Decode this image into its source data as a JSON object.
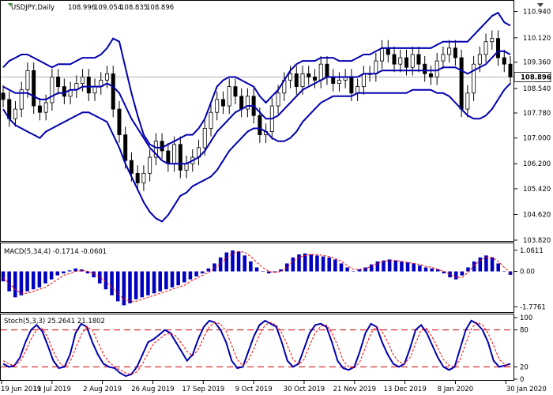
{
  "chart_data": [
    {
      "type": "candlestick",
      "title": "USDJPY,Daily",
      "ohlc": [
        "108.996",
        "109.054",
        "108.835",
        "108.896"
      ],
      "ylim": [
        103.82,
        111.1
      ],
      "y_ticks": [
        "110.940",
        "110.120",
        "109.360",
        "108.540",
        "107.780",
        "107.000",
        "106.200",
        "105.420",
        "104.620",
        "103.820"
      ],
      "last_price": "108.896",
      "series": [
        {
          "name": "Close",
          "values": [
            108.2,
            107.6,
            107.9,
            108.5,
            109.1,
            108.0,
            107.8,
            108.1,
            108.9,
            108.6,
            108.3,
            108.5,
            108.7,
            108.9,
            108.4,
            108.6,
            108.8,
            109.0,
            107.9,
            107.1,
            106.3,
            105.9,
            105.6,
            105.9,
            106.4,
            106.9,
            106.6,
            106.2,
            106.8,
            106.0,
            106.2,
            106.4,
            106.7,
            107.3,
            107.8,
            108.2,
            108.0,
            108.6,
            108.3,
            107.9,
            108.3,
            107.7,
            107.1,
            107.2,
            108.0,
            108.4,
            108.8,
            109.0,
            108.6,
            109.0,
            108.9,
            108.8,
            109.3,
            108.9,
            108.7,
            108.8,
            108.9,
            108.4,
            108.6,
            109.0,
            109.0,
            109.4,
            109.8,
            109.6,
            109.3,
            109.5,
            109.2,
            109.6,
            109.3,
            109.0,
            108.9,
            109.4,
            109.6,
            109.8,
            109.5,
            107.9,
            108.4,
            109.3,
            109.6,
            110.0,
            110.1,
            109.5,
            109.3,
            108.9
          ]
        },
        {
          "name": "BB upper",
          "values": [
            109.2,
            109.4,
            109.5,
            109.6,
            109.6,
            109.5,
            109.4,
            109.3,
            109.2,
            109.3,
            109.3,
            109.3,
            109.4,
            109.5,
            109.5,
            109.5,
            109.6,
            109.8,
            110.1,
            110.0,
            109.2,
            108.4,
            107.7,
            107.1,
            106.8,
            106.7,
            106.7,
            106.8,
            106.9,
            107.0,
            107.1,
            107.1,
            107.3,
            107.6,
            108.1,
            108.6,
            108.8,
            108.9,
            108.9,
            108.8,
            108.7,
            108.6,
            108.3,
            108.1,
            108.3,
            108.5,
            108.8,
            109.1,
            109.3,
            109.4,
            109.4,
            109.4,
            109.5,
            109.5,
            109.5,
            109.4,
            109.4,
            109.4,
            109.5,
            109.6,
            109.6,
            109.7,
            109.8,
            109.8,
            109.8,
            109.8,
            109.8,
            109.8,
            109.8,
            109.8,
            109.8,
            109.9,
            110.0,
            110.0,
            110.0,
            110.0,
            110.0,
            110.2,
            110.4,
            110.6,
            110.8,
            110.9,
            110.6,
            110.5
          ]
        },
        {
          "name": "BB middle",
          "values": [
            108.6,
            108.5,
            108.4,
            108.4,
            108.4,
            108.3,
            108.2,
            108.2,
            108.3,
            108.4,
            108.4,
            108.5,
            108.5,
            108.6,
            108.6,
            108.6,
            108.6,
            108.7,
            108.6,
            108.4,
            108.0,
            107.6,
            107.3,
            107.0,
            106.7,
            106.5,
            106.3,
            106.2,
            106.2,
            106.2,
            106.2,
            106.3,
            106.4,
            106.6,
            106.9,
            107.2,
            107.4,
            107.6,
            107.8,
            107.9,
            108.0,
            108.0,
            107.8,
            107.6,
            107.6,
            107.7,
            107.9,
            108.1,
            108.3,
            108.5,
            108.6,
            108.7,
            108.8,
            108.9,
            108.9,
            108.9,
            108.9,
            108.9,
            108.9,
            109.0,
            109.0,
            109.0,
            109.1,
            109.1,
            109.1,
            109.1,
            109.1,
            109.1,
            109.1,
            109.1,
            109.1,
            109.1,
            109.2,
            109.2,
            109.2,
            109.1,
            109.0,
            109.1,
            109.2,
            109.3,
            109.5,
            109.7,
            109.7,
            109.6
          ]
        },
        {
          "name": "BB lower",
          "values": [
            107.9,
            107.6,
            107.4,
            107.3,
            107.2,
            107.1,
            107.0,
            107.2,
            107.3,
            107.4,
            107.5,
            107.6,
            107.7,
            107.8,
            107.8,
            107.7,
            107.6,
            107.5,
            107.1,
            106.7,
            106.2,
            105.8,
            105.4,
            105.0,
            104.7,
            104.5,
            104.4,
            104.6,
            104.9,
            105.2,
            105.3,
            105.5,
            105.6,
            105.7,
            105.8,
            106.0,
            106.3,
            106.6,
            106.8,
            107.0,
            107.2,
            107.3,
            107.3,
            107.2,
            107.0,
            106.9,
            106.9,
            107.0,
            107.2,
            107.5,
            107.7,
            107.9,
            108.1,
            108.2,
            108.3,
            108.3,
            108.3,
            108.3,
            108.4,
            108.4,
            108.4,
            108.4,
            108.4,
            108.4,
            108.4,
            108.4,
            108.4,
            108.5,
            108.5,
            108.5,
            108.5,
            108.4,
            108.4,
            108.3,
            108.1,
            107.9,
            107.7,
            107.6,
            107.6,
            107.7,
            107.9,
            108.2,
            108.5,
            108.7
          ]
        }
      ]
    },
    {
      "type": "bar",
      "title": "MACD(5,34,4) -0.1714 -0.0601",
      "ylim": [
        -2.0,
        1.25
      ],
      "y_ticks": [
        "1.0611",
        "0.00",
        "-1.7761"
      ],
      "series": [
        {
          "name": "MACD",
          "values": [
            -0.5,
            -1.0,
            -1.3,
            -1.2,
            -1.0,
            -0.9,
            -0.8,
            -0.6,
            -0.4,
            -0.2,
            -0.1,
            0.05,
            0.15,
            0.1,
            -0.1,
            -0.3,
            -0.6,
            -0.9,
            -1.2,
            -1.5,
            -1.7,
            -1.6,
            -1.4,
            -1.3,
            -1.2,
            -1.1,
            -1.0,
            -0.9,
            -0.8,
            -0.7,
            -0.55,
            -0.4,
            -0.25,
            -0.1,
            0.15,
            0.4,
            0.7,
            0.95,
            1.05,
            1.0,
            0.8,
            0.5,
            0.2,
            0.0,
            -0.1,
            -0.05,
            0.1,
            0.4,
            0.7,
            0.85,
            0.9,
            0.85,
            0.8,
            0.75,
            0.7,
            0.6,
            0.4,
            0.2,
            0.0,
            0.1,
            0.2,
            0.35,
            0.5,
            0.55,
            0.6,
            0.55,
            0.5,
            0.45,
            0.4,
            0.3,
            0.2,
            0.15,
            0.1,
            -0.1,
            -0.3,
            -0.4,
            -0.2,
            0.2,
            0.5,
            0.7,
            0.8,
            0.7,
            0.4,
            0.0,
            -0.17
          ]
        },
        {
          "name": "Signal",
          "values": [
            -0.3,
            -0.6,
            -0.9,
            -1.1,
            -1.1,
            -1.0,
            -0.9,
            -0.8,
            -0.6,
            -0.4,
            -0.2,
            -0.1,
            0.0,
            0.05,
            0.0,
            -0.1,
            -0.3,
            -0.5,
            -0.8,
            -1.1,
            -1.4,
            -1.5,
            -1.5,
            -1.4,
            -1.3,
            -1.2,
            -1.1,
            -1.0,
            -0.9,
            -0.8,
            -0.7,
            -0.5,
            -0.35,
            -0.2,
            -0.05,
            0.15,
            0.4,
            0.7,
            0.9,
            1.0,
            0.95,
            0.75,
            0.45,
            0.2,
            0.0,
            -0.05,
            0.0,
            0.2,
            0.5,
            0.7,
            0.8,
            0.85,
            0.85,
            0.8,
            0.75,
            0.65,
            0.5,
            0.3,
            0.1,
            0.1,
            0.15,
            0.25,
            0.4,
            0.5,
            0.55,
            0.55,
            0.5,
            0.45,
            0.4,
            0.35,
            0.25,
            0.2,
            0.1,
            0.0,
            -0.15,
            -0.3,
            -0.3,
            -0.05,
            0.3,
            0.55,
            0.7,
            0.7,
            0.5,
            0.2,
            -0.06
          ]
        }
      ]
    },
    {
      "type": "line",
      "title": "Stoch(5,3,3) 25.2641 21.1802",
      "ylim": [
        0,
        100
      ],
      "y_ticks": [
        "100",
        "80",
        "20",
        "0"
      ],
      "series": [
        {
          "name": "%K",
          "values": [
            25,
            20,
            22,
            35,
            60,
            80,
            88,
            78,
            55,
            30,
            18,
            20,
            40,
            75,
            90,
            85,
            60,
            40,
            25,
            20,
            18,
            10,
            5,
            8,
            20,
            40,
            60,
            65,
            72,
            80,
            75,
            60,
            45,
            30,
            40,
            65,
            85,
            95,
            92,
            80,
            60,
            30,
            18,
            20,
            45,
            70,
            88,
            95,
            90,
            85,
            60,
            30,
            20,
            25,
            50,
            75,
            88,
            90,
            85,
            60,
            30,
            18,
            15,
            20,
            45,
            75,
            90,
            85,
            60,
            40,
            25,
            20,
            25,
            50,
            80,
            88,
            75,
            55,
            35,
            20,
            15,
            20,
            50,
            80,
            95,
            90,
            80,
            60,
            30,
            20,
            22,
            25
          ]
        },
        {
          "name": "%D",
          "values": [
            30,
            25,
            22,
            28,
            45,
            65,
            80,
            82,
            68,
            45,
            28,
            20,
            28,
            50,
            72,
            85,
            80,
            60,
            40,
            28,
            20,
            15,
            10,
            8,
            12,
            25,
            42,
            58,
            65,
            72,
            75,
            70,
            58,
            45,
            38,
            48,
            68,
            85,
            92,
            90,
            78,
            55,
            32,
            22,
            30,
            50,
            72,
            88,
            92,
            88,
            75,
            55,
            32,
            24,
            32,
            55,
            75,
            86,
            88,
            75,
            55,
            30,
            20,
            18,
            28,
            52,
            75,
            85,
            78,
            60,
            40,
            28,
            25,
            35,
            58,
            80,
            82,
            68,
            50,
            32,
            22,
            20,
            32,
            58,
            82,
            92,
            88,
            75,
            55,
            32,
            24,
            21
          ]
        }
      ]
    }
  ],
  "x_ticks": [
    "19 Jun 2019",
    "11 Jul 2019",
    "2 Aug 2019",
    "26 Aug 2019",
    "17 Sep 2019",
    "9 Oct 2019",
    "30 Oct 2019",
    "21 Nov 2019",
    "13 Dec 2019",
    "8 Jan 2020",
    "30 Jan 2020"
  ],
  "colors": {
    "price": "#000000",
    "bollinger": "#0000b0",
    "macd_bars": "#0000c0",
    "macd_signal": "#ff0000",
    "stoch_k": "#0000b0",
    "stoch_d": "#ff0000",
    "levels": "#cc0000"
  }
}
